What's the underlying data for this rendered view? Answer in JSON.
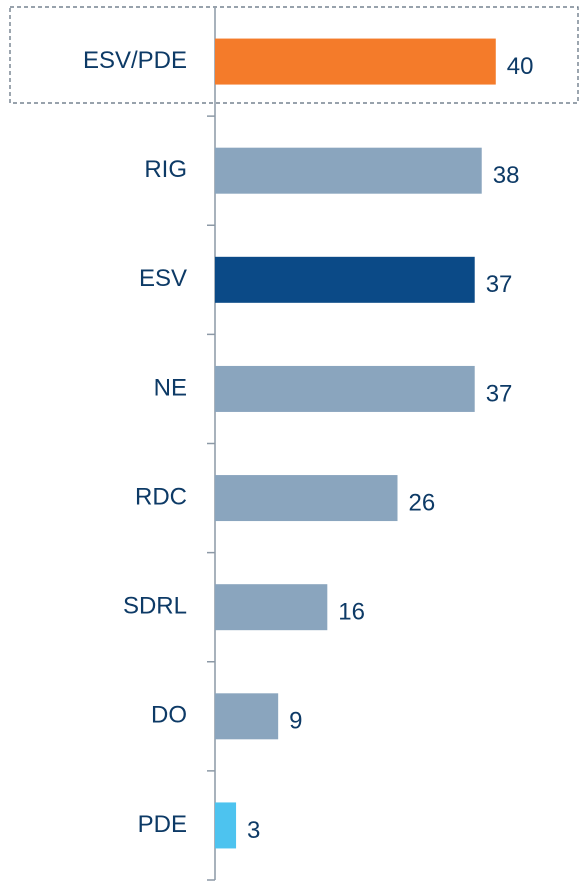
{
  "chart_data": {
    "type": "bar",
    "orientation": "horizontal",
    "categories": [
      "ESV/PDE",
      "RIG",
      "ESV",
      "NE",
      "RDC",
      "SDRL",
      "DO",
      "PDE"
    ],
    "values": [
      40,
      38,
      37,
      37,
      26,
      16,
      9,
      3
    ],
    "colors": [
      "#f47b2a",
      "#8aa5be",
      "#0b4a87",
      "#8aa5be",
      "#8aa5be",
      "#8aa5be",
      "#8aa5be",
      "#4dc3ef"
    ],
    "xlim": [
      0,
      52
    ]
  }
}
